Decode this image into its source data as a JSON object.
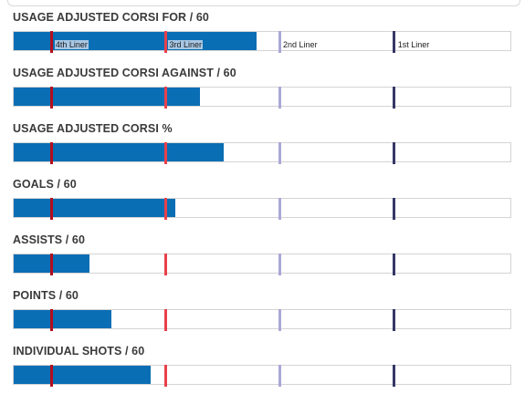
{
  "colors": {
    "bar": "#0a6eb4",
    "4th Liner": "#b40e1e",
    "3rd Liner": "#e8404c",
    "2nd Liner": "#a9a8d6",
    "1st Liner": "#353765"
  },
  "chart_data": {
    "type": "bar",
    "orientation": "horizontal",
    "style": "bullet",
    "scale_max": 100,
    "tiers": [
      "4th Liner",
      "3rd Liner",
      "2nd Liner",
      "1st Liner"
    ],
    "tier_positions": [
      7.7,
      30.6,
      53.5,
      76.6
    ],
    "metrics": [
      {
        "title": "USAGE ADJUSTED CORSI FOR / 60",
        "value": 48.9,
        "show_tier_labels": true
      },
      {
        "title": "USAGE ADJUSTED CORSI AGAINST / 60",
        "value": 37.5,
        "show_tier_labels": false
      },
      {
        "title": "USAGE ADJUSTED CORSI %",
        "value": 42.3,
        "show_tier_labels": false
      },
      {
        "title": "GOALS / 60",
        "value": 32.6,
        "show_tier_labels": false
      },
      {
        "title": "ASSISTS / 60",
        "value": 15.2,
        "show_tier_labels": false
      },
      {
        "title": "POINTS / 60",
        "value": 19.6,
        "show_tier_labels": false
      },
      {
        "title": "INDIVIDUAL SHOTS / 60",
        "value": 27.5,
        "show_tier_labels": false
      }
    ]
  }
}
